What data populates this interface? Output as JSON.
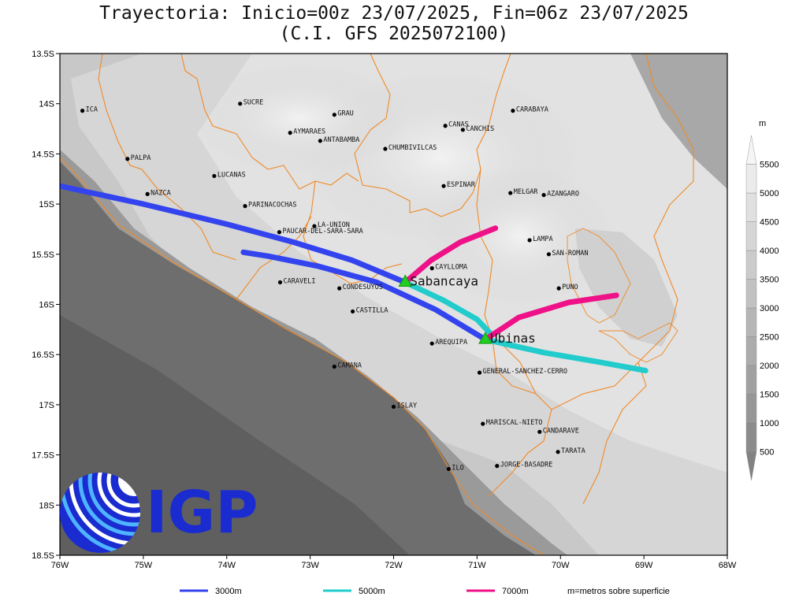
{
  "title": {
    "line1": "Trayectoria: Inicio=00z 23/07/2025, Fin=06z 23/07/2025",
    "line2": "(C.I. GFS 2025072100)"
  },
  "map": {
    "x_ticks": [
      "76W",
      "75W",
      "74W",
      "73W",
      "72W",
      "71W",
      "70W",
      "69W",
      "68W"
    ],
    "y_ticks": [
      "13.5S",
      "14S",
      "14.5S",
      "15S",
      "15.5S",
      "16S",
      "16.5S",
      "17S",
      "17.5S",
      "18S",
      "18.5S"
    ],
    "lon_range": [
      -76,
      -68
    ],
    "lat_range": [
      -18.5,
      -13.5
    ],
    "places": [
      {
        "name": "ICA",
        "lon": -75.73,
        "lat": -14.07
      },
      {
        "name": "SUCRE",
        "lon": -73.84,
        "lat": -14.0
      },
      {
        "name": "GRAU",
        "lon": -72.71,
        "lat": -14.11
      },
      {
        "name": "CARABAYA",
        "lon": -70.57,
        "lat": -14.07
      },
      {
        "name": "CANAS",
        "lon": -71.38,
        "lat": -14.22
      },
      {
        "name": "CANCHIS",
        "lon": -71.17,
        "lat": -14.26
      },
      {
        "name": "AYMARAES",
        "lon": -73.24,
        "lat": -14.29
      },
      {
        "name": "ANTABAMBA",
        "lon": -72.88,
        "lat": -14.37
      },
      {
        "name": "CHUMBIVILCAS",
        "lon": -72.1,
        "lat": -14.45
      },
      {
        "name": "PALPA",
        "lon": -75.19,
        "lat": -14.55
      },
      {
        "name": "LUCANAS",
        "lon": -74.15,
        "lat": -14.72
      },
      {
        "name": "NAZCA",
        "lon": -74.95,
        "lat": -14.9
      },
      {
        "name": "ESPINAR",
        "lon": -71.4,
        "lat": -14.82
      },
      {
        "name": "MELGAR",
        "lon": -70.6,
        "lat": -14.89
      },
      {
        "name": "AZANGARO",
        "lon": -70.2,
        "lat": -14.91
      },
      {
        "name": "PARINACOCHAS",
        "lon": -73.78,
        "lat": -15.02
      },
      {
        "name": "LA-UNION",
        "lon": -72.95,
        "lat": -15.22
      },
      {
        "name": "PAUCAR-DEL-SARA-SARA",
        "lon": -73.37,
        "lat": -15.28
      },
      {
        "name": "LAMPA",
        "lon": -70.37,
        "lat": -15.36
      },
      {
        "name": "SAN-ROMAN",
        "lon": -70.14,
        "lat": -15.5
      },
      {
        "name": "CAYLLOMA",
        "lon": -71.54,
        "lat": -15.64
      },
      {
        "name": "CARAVELI",
        "lon": -73.36,
        "lat": -15.78
      },
      {
        "name": "CONDESUYOS",
        "lon": -72.65,
        "lat": -15.84
      },
      {
        "name": "PUNO",
        "lon": -70.02,
        "lat": -15.84
      },
      {
        "name": "CASTILLA",
        "lon": -72.49,
        "lat": -16.07
      },
      {
        "name": "AREQUIPA",
        "lon": -71.54,
        "lat": -16.39
      },
      {
        "name": "GENERAL-SANCHEZ-CERRO",
        "lon": -70.97,
        "lat": -16.68
      },
      {
        "name": "CAMANA",
        "lon": -72.71,
        "lat": -16.62
      },
      {
        "name": "ISLAY",
        "lon": -72.0,
        "lat": -17.02
      },
      {
        "name": "MARISCAL-NIETO",
        "lon": -70.93,
        "lat": -17.19
      },
      {
        "name": "CANDARAVE",
        "lon": -70.25,
        "lat": -17.27
      },
      {
        "name": "TARATA",
        "lon": -70.03,
        "lat": -17.47
      },
      {
        "name": "ILO",
        "lon": -71.34,
        "lat": -17.64
      },
      {
        "name": "JORGE-BASADRE",
        "lon": -70.76,
        "lat": -17.61
      }
    ],
    "volcanoes": [
      {
        "name": "Sabancaya",
        "lon": -71.86,
        "lat": -15.78
      },
      {
        "name": "Ubinas",
        "lon": -70.9,
        "lat": -16.35
      }
    ]
  },
  "chart_data": {
    "type": "trajectory-map",
    "title": "Trayectoria: Inicio=00z 23/07/2025, Fin=06z 23/07/2025",
    "subtitle": "(C.I. GFS 2025072100)",
    "series": [
      {
        "name": "3000m",
        "color": "#3344ee",
        "paths": [
          [
            [
              -71.86,
              -15.78
            ],
            [
              -72.5,
              -15.56
            ],
            [
              -73.2,
              -15.38
            ],
            [
              -74.0,
              -15.2
            ],
            [
              -75.0,
              -15.0
            ],
            [
              -76.0,
              -14.82
            ]
          ],
          [
            [
              -70.9,
              -16.35
            ],
            [
              -71.5,
              -16.05
            ],
            [
              -72.2,
              -15.78
            ],
            [
              -72.9,
              -15.62
            ],
            [
              -73.5,
              -15.52
            ],
            [
              -73.8,
              -15.48
            ]
          ]
        ]
      },
      {
        "name": "5000m",
        "color": "#22cccc",
        "paths": [
          [
            [
              -71.86,
              -15.78
            ],
            [
              -71.4,
              -15.96
            ],
            [
              -71.0,
              -16.15
            ],
            [
              -70.85,
              -16.28
            ]
          ],
          [
            [
              -70.9,
              -16.35
            ],
            [
              -70.2,
              -16.48
            ],
            [
              -69.5,
              -16.58
            ],
            [
              -68.98,
              -16.66
            ]
          ]
        ]
      },
      {
        "name": "7000m",
        "color": "#ee1188",
        "paths": [
          [
            [
              -71.86,
              -15.78
            ],
            [
              -71.55,
              -15.56
            ],
            [
              -71.2,
              -15.38
            ],
            [
              -70.78,
              -15.24
            ]
          ],
          [
            [
              -70.9,
              -16.35
            ],
            [
              -70.5,
              -16.13
            ],
            [
              -69.9,
              -15.98
            ],
            [
              -69.33,
              -15.91
            ]
          ]
        ]
      }
    ],
    "colorbar": {
      "unit": "m",
      "ticks": [
        "500",
        "1000",
        "1500",
        "2000",
        "2500",
        "3000",
        "3500",
        "4000",
        "4500",
        "5000",
        "5500"
      ]
    },
    "legend": [
      {
        "label": "3000m",
        "color": "#3344ee"
      },
      {
        "label": "5000m",
        "color": "#22cccc"
      },
      {
        "label": "7000m",
        "color": "#ee1188"
      }
    ],
    "legend_note": "m=metros sobre superficie"
  },
  "logo": {
    "text": "IGP"
  }
}
